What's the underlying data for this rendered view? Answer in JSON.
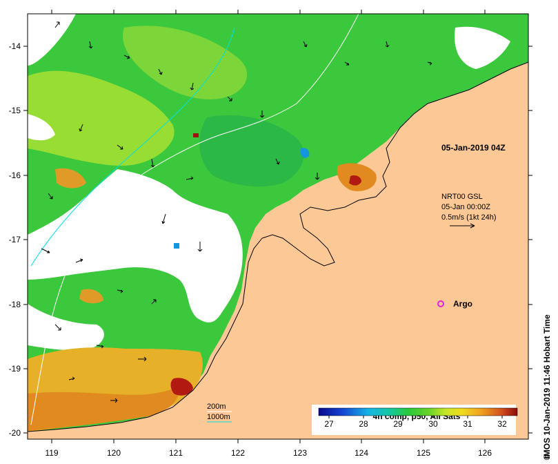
{
  "map": {
    "longitudes": [
      "119",
      "120",
      "121",
      "122",
      "123",
      "124",
      "125",
      "126"
    ],
    "latitudes": [
      "-14",
      "-15",
      "-16",
      "-17",
      "-18",
      "-19",
      "-20"
    ],
    "date_label": "05-Jan-2019 04Z",
    "current_legend": {
      "source": "NRT00 GSL",
      "time": "05-Jan 00:00Z",
      "scale": "0.5m/s (1kt 24h)"
    },
    "argo_label": "Argo",
    "bathymetry": {
      "contour_200": "200m",
      "contour_1000": "1000m"
    },
    "colorbar": {
      "title": "4h comp, p50, All Sats",
      "ticks": [
        "27",
        "28",
        "29",
        "30",
        "31",
        "32"
      ]
    },
    "credit": "IMOS 10-Jan-2019 11:46 Hobart Time",
    "copyright_symbol": "©",
    "colors": {
      "land": "#fbc896",
      "sst_green": "#36c83c",
      "sst_yellow_green": "#a8e032",
      "sst_warm": "#e08a20",
      "sst_hot": "#b01a10",
      "contour_200": "#ffffff",
      "contour_1000": "#00e0e0",
      "argo": "#e020e0"
    }
  }
}
